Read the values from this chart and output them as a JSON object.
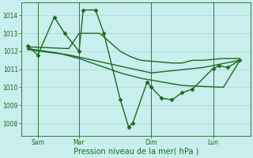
{
  "background_color": "#c8eeee",
  "grid_color": "#a8d8d8",
  "line_color": "#1a6b1a",
  "marker_style": "D",
  "marker_size": 2.5,
  "line_width": 1.0,
  "yticks": [
    1008,
    1009,
    1010,
    1011,
    1012,
    1013,
    1014
  ],
  "ylim": [
    1007.3,
    1014.7
  ],
  "xlim": [
    -0.3,
    10.8
  ],
  "x_tick_positions": [
    0.5,
    2.5,
    6.0,
    9.0
  ],
  "x_tick_labels": [
    "Sam",
    "Mar",
    "Dim",
    "Lun"
  ],
  "xlabel": "Pression niveau de la mer( hPa )",
  "series": [
    {
      "x": [
        0.0,
        0.5,
        1.3,
        1.8,
        2.5,
        2.7,
        3.3,
        3.7,
        4.5,
        4.9,
        5.1,
        5.8,
        6.0,
        6.5,
        7.0,
        7.5,
        8.0,
        9.0,
        9.3,
        9.7,
        10.3
      ],
      "y": [
        1012.3,
        1011.8,
        1013.9,
        1013.0,
        1012.0,
        1014.3,
        1014.3,
        1013.0,
        1009.3,
        1007.8,
        1008.0,
        1010.3,
        1010.0,
        1009.4,
        1009.3,
        1009.7,
        1009.9,
        1011.05,
        1011.2,
        1011.1,
        1011.5
      ],
      "has_markers": true
    },
    {
      "x": [
        0.0,
        1.0,
        2.0,
        2.5,
        3.5,
        4.0,
        4.5,
        5.0,
        5.5,
        6.5,
        7.0,
        7.5,
        8.0,
        8.5,
        9.5,
        10.3
      ],
      "y": [
        1012.25,
        1012.2,
        1012.15,
        1013.0,
        1013.0,
        1012.5,
        1012.0,
        1011.7,
        1011.5,
        1011.4,
        1011.35,
        1011.35,
        1011.5,
        1011.5,
        1011.6,
        1011.6
      ],
      "has_markers": false
    },
    {
      "x": [
        0.0,
        1.5,
        2.5,
        3.5,
        4.5,
        5.5,
        6.5,
        7.5,
        8.5,
        9.5,
        10.3
      ],
      "y": [
        1012.15,
        1011.9,
        1011.6,
        1011.2,
        1010.8,
        1010.5,
        1010.3,
        1010.1,
        1010.05,
        1010.0,
        1011.5
      ],
      "has_markers": false
    },
    {
      "x": [
        0.0,
        2.0,
        4.0,
        6.0,
        8.5,
        10.3
      ],
      "y": [
        1012.1,
        1011.8,
        1011.3,
        1010.8,
        1011.1,
        1011.5
      ],
      "has_markers": false
    }
  ],
  "vlines_x": [
    0.5,
    2.5,
    6.0,
    9.0
  ],
  "figsize": [
    3.2,
    2.0
  ],
  "dpi": 100
}
